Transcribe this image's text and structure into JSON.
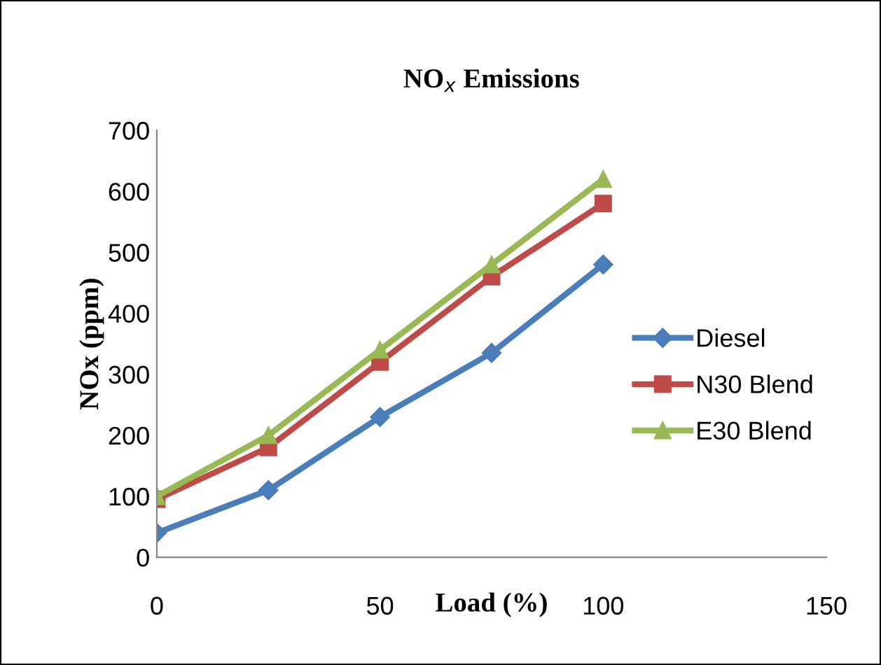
{
  "chart_data": {
    "type": "line",
    "title": "NO$_{x}$ Emissions",
    "xlabel": "Load (%)",
    "ylabel": "NOx (ppm)",
    "x": [
      0,
      25,
      50,
      75,
      100
    ],
    "series": [
      {
        "name": "Diesel",
        "color": "#4a7ebb",
        "marker": "diamond",
        "values": [
          40,
          110,
          230,
          335,
          480
        ]
      },
      {
        "name": "N30 Blend",
        "color": "#be4b48",
        "marker": "square",
        "values": [
          95,
          180,
          320,
          460,
          580
        ]
      },
      {
        "name": "E30 Blend",
        "color": "#98b954",
        "marker": "triangle",
        "values": [
          100,
          200,
          340,
          480,
          620
        ]
      }
    ],
    "xlim": [
      0,
      150
    ],
    "xticks": [
      0,
      50,
      100,
      150
    ],
    "ylim": [
      0,
      700
    ],
    "yticks": [
      0,
      100,
      200,
      300,
      400,
      500,
      600,
      700
    ],
    "grid": false,
    "legend": "right",
    "line_style": "solid"
  }
}
